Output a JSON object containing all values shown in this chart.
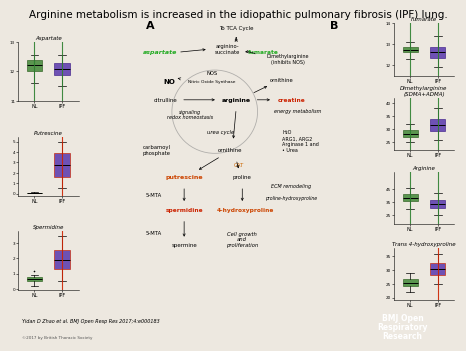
{
  "title": "Arginine metabolism is increased in the idiopathic pulmonary fibrosis (IPF) lung.",
  "title_fontsize": 7.5,
  "bg_color": "#ede8e0",
  "plots": {
    "aspartate": {
      "title": "Aspartate",
      "nl_data": [
        11.6,
        11.8,
        12.0,
        12.1,
        12.2,
        12.25,
        12.3,
        12.4,
        12.5,
        12.55
      ],
      "ipf_data": [
        11.5,
        11.7,
        11.85,
        11.95,
        12.05,
        12.1,
        12.2,
        12.3,
        12.4,
        12.55
      ],
      "ylim": [
        11.3,
        12.9
      ],
      "yticks": [
        11,
        12,
        13
      ],
      "nl_box_color": "#4a8c3f",
      "ipf_box_color": "#6040b0",
      "nl_edge": "#2e6020",
      "ipf_edge": "#40208a",
      "highlight": "green"
    },
    "putrescine": {
      "title": "Putrescine",
      "nl_data": [
        0.04,
        0.05,
        0.06,
        0.07,
        0.075,
        0.08,
        0.09,
        0.1,
        0.11,
        0.12
      ],
      "ipf_data": [
        0.5,
        1.0,
        1.5,
        2.0,
        2.5,
        3.0,
        3.5,
        4.0,
        4.5,
        5.0
      ],
      "ylim": [
        -0.2,
        5.5
      ],
      "yticks": [
        0,
        1,
        2,
        3,
        4,
        5
      ],
      "nl_box_color": "#4a8c3f",
      "ipf_box_color": "#6040b0",
      "nl_edge": "#2e6020",
      "ipf_edge": "#cc2200",
      "highlight": "red"
    },
    "spermidine": {
      "title": "Spermidine",
      "nl_data": [
        0.2,
        0.35,
        0.5,
        0.55,
        0.6,
        0.65,
        0.7,
        0.8,
        0.9,
        1.2
      ],
      "ipf_data": [
        0.5,
        0.9,
        1.2,
        1.5,
        1.8,
        2.0,
        2.3,
        2.6,
        3.0,
        3.5
      ],
      "ylim": [
        -0.1,
        3.8
      ],
      "yticks": [
        0,
        1,
        2,
        3
      ],
      "nl_box_color": "#4a8c3f",
      "ipf_box_color": "#6040b0",
      "nl_edge": "#2e6020",
      "ipf_edge": "#cc2200",
      "highlight": "red"
    },
    "fumarate": {
      "title": "Fumarate",
      "nl_data": [
        12.3,
        12.5,
        12.6,
        12.65,
        12.7,
        12.75,
        12.8,
        12.9,
        13.0,
        13.1
      ],
      "ipf_data": [
        11.9,
        12.1,
        12.3,
        12.5,
        12.6,
        12.7,
        12.8,
        12.9,
        13.1,
        13.4
      ],
      "ylim": [
        11.5,
        14.0
      ],
      "yticks": [
        12,
        13,
        14
      ],
      "nl_box_color": "#4a8c3f",
      "ipf_box_color": "#6040b0",
      "nl_edge": "#2e6020",
      "ipf_edge": "#40208a",
      "highlight": "green"
    },
    "dimethylarginine": {
      "title": "Dimethylarginine\n(SDMA+ADMA)",
      "nl_data": [
        25,
        26,
        27,
        27.5,
        28,
        28.5,
        29,
        30,
        31,
        32
      ],
      "ipf_data": [
        26,
        28,
        29,
        30,
        31,
        32,
        33,
        34,
        35,
        38
      ],
      "ylim": [
        22,
        42
      ],
      "yticks": [
        25,
        30,
        35,
        40
      ],
      "nl_box_color": "#4a8c3f",
      "ipf_box_color": "#6040b0",
      "nl_edge": "#2e6020",
      "ipf_edge": "#40208a",
      "highlight": "green"
    },
    "arginine": {
      "title": "Arginine",
      "nl_data": [
        30,
        33,
        35,
        37,
        38,
        39,
        40,
        42,
        44,
        46
      ],
      "ipf_data": [
        25,
        28,
        30,
        32,
        33,
        34,
        35,
        37,
        39,
        42
      ],
      "ylim": [
        18,
        58
      ],
      "yticks": [
        25,
        35,
        45
      ],
      "nl_box_color": "#4a8c3f",
      "ipf_box_color": "#6040b0",
      "nl_edge": "#2e6020",
      "ipf_edge": "#40208a",
      "highlight": "green"
    },
    "trans4hydroxyproline": {
      "title": "Trans 4-hydroxyproline",
      "nl_data": [
        22,
        23,
        24,
        24.5,
        25,
        25.5,
        26,
        27,
        28,
        29
      ],
      "ipf_data": [
        25,
        27,
        28,
        29,
        30,
        31,
        32,
        33,
        34,
        36
      ],
      "ylim": [
        19,
        38
      ],
      "yticks": [
        20,
        25,
        30,
        35
      ],
      "nl_box_color": "#4a8c3f",
      "ipf_box_color": "#6040b0",
      "nl_edge": "#2e6020",
      "ipf_edge": "#cc2200",
      "highlight": "red"
    }
  },
  "citation": "Yidan D Zhao et al. BMJ Open Resp Res 2017;4:e000183",
  "copyright": "©2017 by British Thoracic Society"
}
